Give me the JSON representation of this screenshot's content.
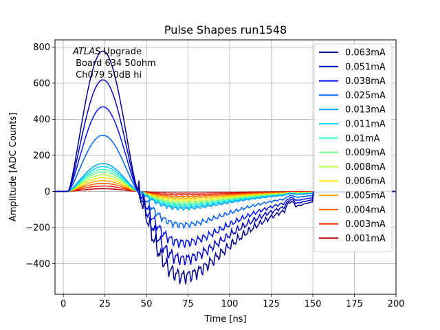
{
  "chart_data": {
    "type": "line",
    "title": "Pulse Shapes run1548",
    "xlabel": "Time [ns]",
    "ylabel": "Amplitude [ADC Counts]",
    "xlim": [
      -5,
      200
    ],
    "ylim": [
      -570,
      840
    ],
    "xticks": [
      0,
      25,
      50,
      75,
      100,
      125,
      150,
      175,
      200
    ],
    "xtick_labels": [
      "0",
      "25",
      "50",
      "75",
      "100",
      "125",
      "150",
      "175",
      "200"
    ],
    "yticks": [
      -400,
      -200,
      0,
      200,
      400,
      600,
      800
    ],
    "ytick_labels": [
      "−400",
      "−200",
      "0",
      "200",
      "400",
      "600",
      "800"
    ],
    "grid": true,
    "legend_position": "top-right",
    "annotation": {
      "italic": "ATLAS",
      "line1_rest": " Upgrade",
      "line2": " Board 634 50ohm",
      "line3": " Ch079 50dB hi"
    },
    "series": [
      {
        "name": "0.063mA",
        "color": "#00008f",
        "peak": 780,
        "trough": -470
      },
      {
        "name": "0.051mA",
        "color": "#0000c8",
        "peak": 620,
        "trough": -375
      },
      {
        "name": "0.038mA",
        "color": "#0010ff",
        "peak": 470,
        "trough": -285
      },
      {
        "name": "0.025mA",
        "color": "#0060ff",
        "peak": 312,
        "trough": -185
      },
      {
        "name": "0.013mA",
        "color": "#00a0ff",
        "peak": 155,
        "trough": -95
      },
      {
        "name": "0.011mA",
        "color": "#00d8ff",
        "peak": 138,
        "trough": -85
      },
      {
        "name": "0.01mA",
        "color": "#30ffc8",
        "peak": 122,
        "trough": -75
      },
      {
        "name": "0.009mA",
        "color": "#70ff88",
        "peak": 108,
        "trough": -66
      },
      {
        "name": "0.008mA",
        "color": "#b8ff40",
        "peak": 92,
        "trough": -56
      },
      {
        "name": "0.006mA",
        "color": "#ffe600",
        "peak": 76,
        "trough": -46
      },
      {
        "name": "0.005mA",
        "color": "#ffaa00",
        "peak": 60,
        "trough": -37
      },
      {
        "name": "0.004mA",
        "color": "#ff6400",
        "peak": 45,
        "trough": -27
      },
      {
        "name": "0.003mA",
        "color": "#ff2000",
        "peak": 30,
        "trough": -18
      },
      {
        "name": "0.001mA",
        "color": "#b80000",
        "peak": 15,
        "trough": -9
      }
    ]
  }
}
